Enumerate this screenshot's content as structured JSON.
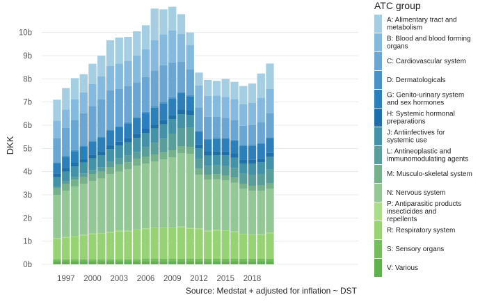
{
  "chart_data": {
    "type": "bar",
    "stacked": true,
    "title": "",
    "xlabel": "",
    "ylabel": "DKK",
    "ylim": [
      0,
      10.8
    ],
    "yticks": [
      0,
      1,
      2,
      3,
      4,
      5,
      6,
      7,
      8,
      9,
      10
    ],
    "ytick_labels": [
      "0b",
      "1b",
      "2b",
      "3b",
      "4b",
      "5b",
      "6b",
      "7b",
      "8b",
      "9b",
      "10b"
    ],
    "xtick_labels": [
      "1997",
      "2000",
      "2003",
      "2006",
      "2009",
      "2012",
      "2015",
      "2018"
    ],
    "grid": true,
    "legend_position": "right",
    "legend_title": "ATC group",
    "caption": "Source: Medstat + adjusted for inflation ~ DST",
    "categories": [
      "1996",
      "1997",
      "1998",
      "1999",
      "2000",
      "2001",
      "2002",
      "2003",
      "2004",
      "2005",
      "2006",
      "2007",
      "2008",
      "2009",
      "2010",
      "2011",
      "2012",
      "2013",
      "2014",
      "2015",
      "2016",
      "2017",
      "2018",
      "2019",
      "2020"
    ],
    "series": [
      {
        "name": "V: Various",
        "color": "#5fb14b",
        "values": [
          0.12,
          0.12,
          0.12,
          0.12,
          0.12,
          0.12,
          0.12,
          0.12,
          0.12,
          0.12,
          0.12,
          0.12,
          0.12,
          0.12,
          0.12,
          0.12,
          0.12,
          0.12,
          0.12,
          0.12,
          0.12,
          0.12,
          0.12,
          0.12,
          0.12
        ]
      },
      {
        "name": "S: Sensory organs",
        "color": "#74bc5e",
        "values": [
          0.1,
          0.1,
          0.1,
          0.1,
          0.1,
          0.1,
          0.1,
          0.1,
          0.1,
          0.1,
          0.12,
          0.12,
          0.12,
          0.12,
          0.12,
          0.12,
          0.12,
          0.12,
          0.12,
          0.12,
          0.12,
          0.12,
          0.12,
          0.12,
          0.12
        ]
      },
      {
        "name": "R: Respiratory system",
        "color": "#97d275",
        "values": [
          0.88,
          0.93,
          0.98,
          1.03,
          1.08,
          1.1,
          1.15,
          1.2,
          1.2,
          1.25,
          1.28,
          1.32,
          1.32,
          1.32,
          1.36,
          1.3,
          1.28,
          1.18,
          1.22,
          1.2,
          1.15,
          1.05,
          1.02,
          1.03,
          1.1
        ]
      },
      {
        "name": "P: Antiparasitic products insecticides and repellents",
        "color": "#abdc8c",
        "values": [
          0.03,
          0.03,
          0.03,
          0.03,
          0.03,
          0.03,
          0.03,
          0.03,
          0.03,
          0.03,
          0.03,
          0.03,
          0.03,
          0.03,
          0.03,
          0.03,
          0.03,
          0.03,
          0.03,
          0.03,
          0.03,
          0.03,
          0.03,
          0.03,
          0.03
        ]
      },
      {
        "name": "N: Nervous system",
        "color": "#93c796",
        "values": [
          1.87,
          2.0,
          2.12,
          2.2,
          2.27,
          2.35,
          2.5,
          2.55,
          2.65,
          2.75,
          2.8,
          2.85,
          2.93,
          3.03,
          3.17,
          3.2,
          2.32,
          2.2,
          2.18,
          2.15,
          2.1,
          1.94,
          1.88,
          1.88,
          1.9
        ]
      },
      {
        "name": "M: Musculo-skeletal system",
        "color": "#77b18b",
        "values": [
          0.28,
          0.3,
          0.3,
          0.3,
          0.3,
          0.3,
          0.3,
          0.3,
          0.3,
          0.3,
          0.3,
          0.3,
          0.3,
          0.3,
          0.3,
          0.3,
          0.25,
          0.22,
          0.22,
          0.22,
          0.22,
          0.22,
          0.22,
          0.22,
          0.22
        ]
      },
      {
        "name": "L: Antineoplastic and immunomodulating agents",
        "color": "#5a9e9b",
        "values": [
          0.08,
          0.1,
          0.12,
          0.14,
          0.17,
          0.19,
          0.22,
          0.27,
          0.29,
          0.3,
          0.4,
          0.5,
          0.6,
          0.72,
          0.78,
          0.82,
          0.43,
          0.38,
          0.38,
          0.42,
          0.42,
          0.43,
          0.48,
          0.5,
          0.6
        ]
      },
      {
        "name": "J: Antiinfectives for systemic use",
        "color": "#4392a8",
        "values": [
          0.4,
          0.42,
          0.45,
          0.47,
          0.5,
          0.52,
          0.55,
          0.55,
          0.57,
          0.6,
          0.62,
          0.62,
          0.62,
          0.62,
          0.6,
          0.56,
          0.45,
          0.44,
          0.44,
          0.44,
          0.44,
          0.44,
          0.47,
          0.5,
          0.55
        ]
      },
      {
        "name": "H: Systemic hormonal preparations",
        "color": "#1f6fa9",
        "values": [
          0.16,
          0.16,
          0.16,
          0.16,
          0.16,
          0.17,
          0.17,
          0.17,
          0.17,
          0.18,
          0.18,
          0.18,
          0.18,
          0.18,
          0.18,
          0.18,
          0.17,
          0.17,
          0.17,
          0.17,
          0.17,
          0.17,
          0.17,
          0.17,
          0.17
        ]
      },
      {
        "name": "G: Genito-urinary system and sex hormones",
        "color": "#2c7fb8",
        "values": [
          0.43,
          0.47,
          0.5,
          0.52,
          0.55,
          0.58,
          0.62,
          0.62,
          0.65,
          0.67,
          0.68,
          0.72,
          0.72,
          0.72,
          0.72,
          0.62,
          0.55,
          0.51,
          0.53,
          0.55,
          0.56,
          0.58,
          0.6,
          0.62,
          0.62
        ]
      },
      {
        "name": "D: Dermatologicals",
        "color": "#4b92c4",
        "values": [
          0.05,
          0.05,
          0.05,
          0.05,
          0.05,
          0.05,
          0.05,
          0.05,
          0.05,
          0.05,
          0.05,
          0.05,
          0.05,
          0.05,
          0.05,
          0.05,
          0.05,
          0.05,
          0.05,
          0.05,
          0.05,
          0.05,
          0.05,
          0.05,
          0.05
        ]
      },
      {
        "name": "C: Cardiovascular system",
        "color": "#6aa6d1",
        "values": [
          1.05,
          1.2,
          1.3,
          1.4,
          1.5,
          1.6,
          1.7,
          1.6,
          1.55,
          1.5,
          1.5,
          1.55,
          1.6,
          1.5,
          1.3,
          1.1,
          1.0,
          0.95,
          0.9,
          0.85,
          0.85,
          0.83,
          0.85,
          0.9,
          1.03
        ]
      },
      {
        "name": "B: Blood and blood forming organs",
        "color": "#86b9de",
        "values": [
          0.75,
          0.8,
          0.88,
          0.9,
          0.95,
          1.0,
          1.05,
          1.1,
          1.1,
          1.15,
          1.2,
          1.3,
          1.33,
          1.37,
          1.2,
          1.05,
          0.95,
          0.9,
          0.92,
          0.9,
          0.9,
          0.92,
          0.96,
          1.05,
          1.05
        ]
      },
      {
        "name": "A: Alimentary tract and metabolism",
        "color": "#a6cee3",
        "values": [
          0.9,
          0.92,
          0.92,
          0.78,
          0.87,
          0.89,
          1.1,
          1.12,
          1.03,
          1.05,
          1.03,
          1.37,
          1.08,
          1.03,
          0.86,
          0.55,
          0.55,
          0.68,
          0.63,
          0.78,
          0.74,
          0.79,
          0.83,
          1.04,
          1.1
        ]
      }
    ]
  }
}
